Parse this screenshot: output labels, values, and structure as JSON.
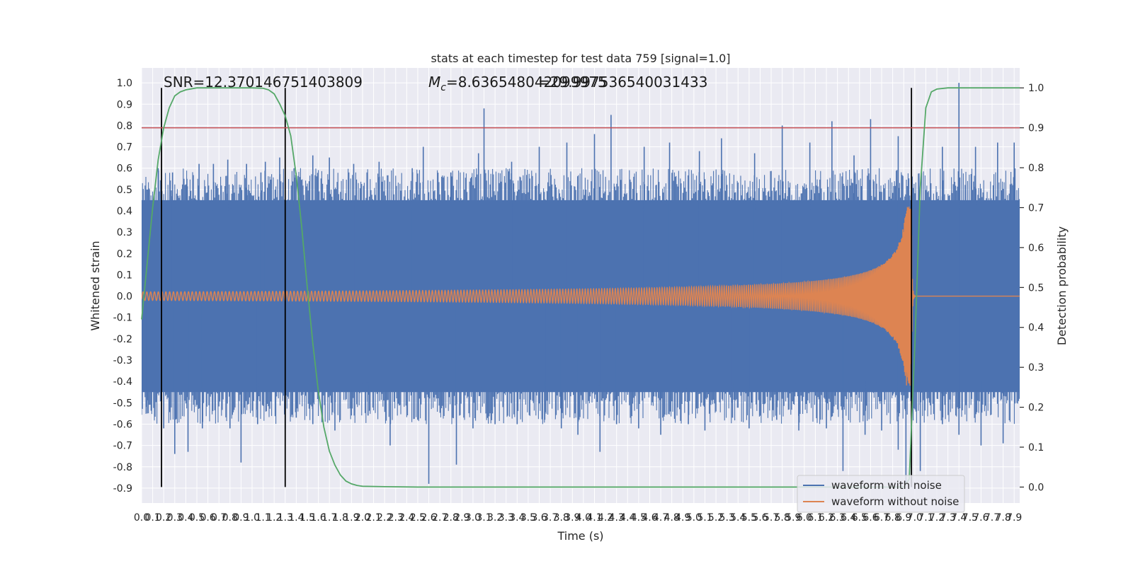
{
  "chart_data": {
    "type": "line",
    "title": "stats at each timestep for test data 759 [signal=1.0]",
    "xlabel": "Time (s)",
    "ylabel_left": "Whitened strain",
    "ylabel_right": "Detection probability",
    "xlim": [
      0.0,
      7.95
    ],
    "ylim_left": [
      -0.97,
      1.07
    ],
    "ylim_right": [
      -0.04,
      1.05
    ],
    "x_ticks": [
      "0.0",
      "0.1",
      "0.2",
      "0.3",
      "0.4",
      "0.5",
      "0.6",
      "0.7",
      "0.8",
      "0.9",
      "1.0",
      "1.1",
      "1.2",
      "1.3",
      "1.4",
      "1.5",
      "1.6",
      "1.7",
      "1.8",
      "1.9",
      "2.0",
      "2.1",
      "2.2",
      "2.3",
      "2.4",
      "2.5",
      "2.6",
      "2.7",
      "2.8",
      "2.9",
      "3.0",
      "3.1",
      "3.2",
      "3.3",
      "3.4",
      "3.5",
      "3.6",
      "3.7",
      "3.8",
      "3.9",
      "4.0",
      "4.1",
      "4.2",
      "4.3",
      "4.4",
      "4.5",
      "4.6",
      "4.7",
      "4.8",
      "4.9",
      "5.0",
      "5.1",
      "5.2",
      "5.3",
      "5.4",
      "5.5",
      "5.6",
      "5.7",
      "5.8",
      "5.9",
      "6.0",
      "6.1",
      "6.2",
      "6.3",
      "6.4",
      "6.5",
      "6.6",
      "6.7",
      "6.8",
      "6.9",
      "7.0",
      "7.1",
      "7.2",
      "7.3",
      "7.4",
      "7.5",
      "7.6",
      "7.7",
      "7.8",
      "7.9"
    ],
    "y_ticks_left": [
      "1.0",
      "0.9",
      "0.8",
      "0.7",
      "0.6",
      "0.5",
      "0.4",
      "0.3",
      "0.2",
      "0.1",
      "0.0",
      "-0.1",
      "-0.2",
      "-0.3",
      "-0.4",
      "-0.5",
      "-0.6",
      "-0.7",
      "-0.8",
      "-0.9"
    ],
    "y_ticks_right": [
      "1.0",
      "0.9",
      "0.8",
      "0.7",
      "0.6",
      "0.5",
      "0.4",
      "0.3",
      "0.2",
      "0.1",
      "0.0"
    ],
    "annotations": {
      "snr": "SNR=12.370146751403809",
      "mc_symbol": "M",
      "mc_subscript": "c",
      "mc_text": "=8.636548042099975",
      "mc_overlap": "=29.997536540031433"
    },
    "threshold_line": {
      "y_right": 0.9,
      "color": "#c44e52"
    },
    "vertical_markers_x": [
      0.18,
      1.3,
      6.97
    ],
    "detection_probability": {
      "x": [
        0.0,
        0.05,
        0.1,
        0.15,
        0.2,
        0.25,
        0.3,
        0.35,
        0.4,
        0.5,
        0.6,
        0.8,
        1.0,
        1.1,
        1.15,
        1.2,
        1.25,
        1.3,
        1.35,
        1.4,
        1.45,
        1.5,
        1.55,
        1.6,
        1.65,
        1.7,
        1.75,
        1.8,
        1.85,
        1.9,
        1.95,
        2.0,
        2.2,
        2.5,
        3.0,
        4.0,
        5.0,
        6.0,
        6.5,
        6.8,
        6.9,
        6.95,
        7.0,
        7.05,
        7.1,
        7.15,
        7.2,
        7.3,
        7.5,
        7.95
      ],
      "y": [
        0.42,
        0.56,
        0.7,
        0.82,
        0.9,
        0.95,
        0.98,
        0.99,
        0.995,
        1.0,
        1.0,
        1.0,
        1.0,
        0.999,
        0.995,
        0.985,
        0.96,
        0.93,
        0.88,
        0.78,
        0.65,
        0.5,
        0.36,
        0.24,
        0.15,
        0.09,
        0.055,
        0.03,
        0.015,
        0.008,
        0.004,
        0.002,
        0.001,
        0.0,
        0.0,
        0.0,
        0.0,
        0.0,
        0.0,
        0.0,
        0.0,
        0.02,
        0.35,
        0.75,
        0.95,
        0.99,
        0.997,
        1.0,
        1.0,
        1.0
      ],
      "color": "#55a868"
    },
    "noisy_waveform": {
      "band_upper": 0.45,
      "band_lower": -0.45,
      "spike_peaks_x": [
        0.07,
        0.15,
        0.28,
        0.41,
        0.52,
        0.65,
        0.78,
        0.95,
        1.08,
        1.12,
        1.25,
        1.38,
        1.55,
        1.7,
        1.92,
        2.15,
        2.45,
        2.55,
        2.8,
        3.05,
        3.1,
        3.35,
        3.6,
        3.85,
        4.1,
        4.25,
        4.55,
        4.78,
        5.05,
        5.25,
        5.55,
        5.8,
        6.05,
        6.25,
        6.45,
        6.6,
        6.85,
        7.25,
        7.4,
        7.55,
        7.75,
        7.9
      ],
      "spike_peaks_y": [
        0.5,
        0.6,
        0.58,
        0.55,
        0.62,
        0.62,
        0.64,
        0.62,
        0.58,
        0.63,
        0.65,
        0.6,
        0.66,
        0.65,
        0.62,
        0.63,
        0.6,
        0.7,
        0.58,
        0.67,
        0.88,
        0.63,
        0.7,
        0.72,
        0.76,
        0.85,
        0.7,
        0.72,
        0.68,
        0.74,
        0.67,
        0.8,
        0.72,
        0.82,
        0.66,
        0.83,
        0.75,
        0.7,
        1.0,
        0.7,
        0.72,
        0.72
      ],
      "spike_troughs_x": [
        0.05,
        0.2,
        0.3,
        0.42,
        0.55,
        0.8,
        0.9,
        1.05,
        1.3,
        1.4,
        1.55,
        1.75,
        2.05,
        2.25,
        2.5,
        2.6,
        2.85,
        3.0,
        3.2,
        3.4,
        3.65,
        3.8,
        3.95,
        4.15,
        4.3,
        4.5,
        4.7,
        4.95,
        5.1,
        5.35,
        5.5,
        5.75,
        5.95,
        6.2,
        6.35,
        6.55,
        6.7,
        6.85,
        6.92,
        7.05,
        7.25,
        7.4,
        7.6,
        7.8
      ],
      "spike_troughs_y": [
        -0.55,
        -0.62,
        -0.74,
        -0.73,
        -0.62,
        -0.62,
        -0.78,
        -0.6,
        -0.62,
        -0.57,
        -0.6,
        -0.63,
        -0.56,
        -0.7,
        -0.58,
        -0.88,
        -0.79,
        -0.62,
        -0.6,
        -0.6,
        -0.58,
        -0.62,
        -0.65,
        -0.73,
        -0.6,
        -0.62,
        -0.65,
        -0.6,
        -0.63,
        -0.57,
        -0.62,
        -0.58,
        -0.63,
        -0.62,
        -0.82,
        -0.65,
        -0.63,
        -0.72,
        -0.88,
        -0.82,
        -0.6,
        -0.65,
        -0.7,
        -0.69
      ],
      "color": "#4c72b0"
    },
    "clean_waveform": {
      "start_amplitude": 0.02,
      "merger_time": 6.97,
      "peak_amplitude": 0.42,
      "color": "#dd8452"
    },
    "legend": {
      "location": "lower-right",
      "entries": [
        {
          "label": "waveform with noise",
          "color": "#4c72b0"
        },
        {
          "label": "waveform without noise",
          "color": "#dd8452"
        }
      ]
    }
  }
}
